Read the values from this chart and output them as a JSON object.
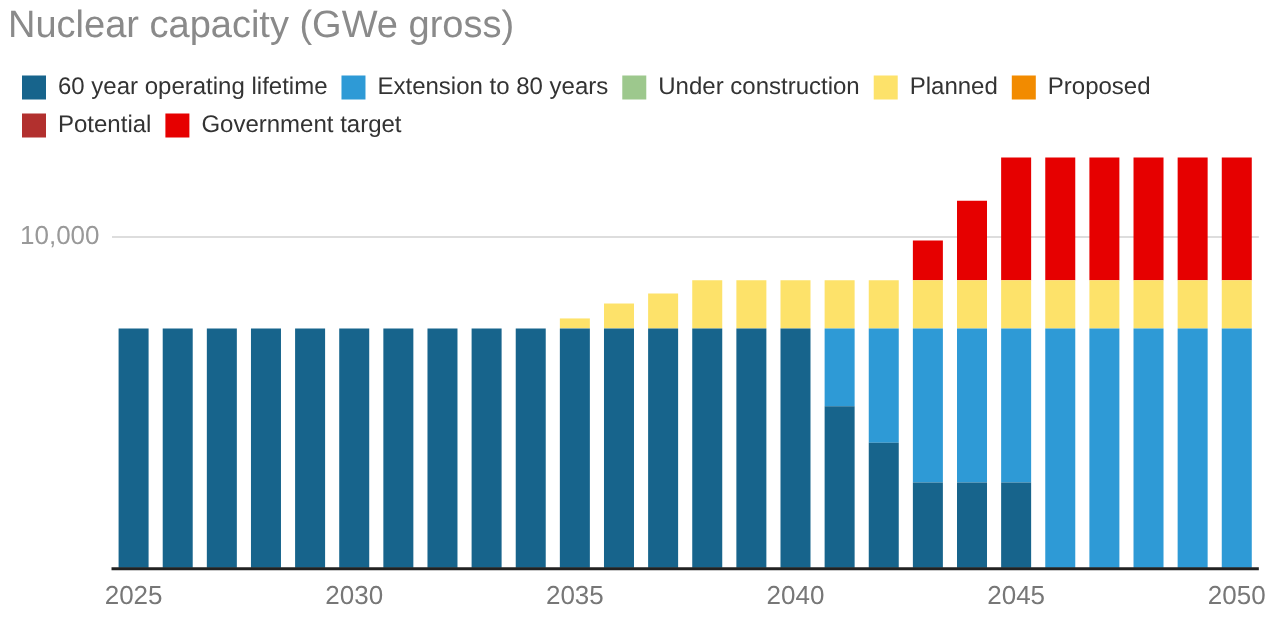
{
  "chart_data": {
    "type": "bar",
    "title": "Nuclear capacity (GWe gross)",
    "stacked": true,
    "legend": "top left",
    "grid": "y",
    "categories": [
      "2025",
      null,
      null,
      null,
      null,
      "2030",
      null,
      null,
      null,
      null,
      "2035",
      null,
      null,
      null,
      null,
      "2040",
      null,
      null,
      null,
      null,
      "2045",
      null,
      null,
      null,
      null,
      "2050"
    ],
    "ylim": [
      0,
      12400
    ],
    "yticks": [
      {
        "value": 0,
        "label": null
      },
      10000
    ],
    "series": [
      {
        "name": "60 year operating lifetime",
        "color": "#17648c",
        "values": [
          7250,
          7250,
          7250,
          7250,
          7250,
          7250,
          7250,
          7250,
          7250,
          7250,
          7250,
          7250,
          7250,
          7250,
          7250,
          7250,
          4900,
          3800,
          2600,
          2600,
          2600,
          null,
          null,
          null,
          null,
          null
        ]
      },
      {
        "name": "Extension to 80 years",
        "color": "#2e9ad6",
        "values": [
          null,
          null,
          null,
          null,
          null,
          null,
          null,
          null,
          null,
          null,
          null,
          null,
          null,
          null,
          null,
          null,
          2350,
          3450,
          4650,
          4650,
          4650,
          7250,
          7250,
          7250,
          7250,
          7250
        ]
      },
      {
        "name": "Under construction",
        "color": "#9dc88d",
        "values": [
          null,
          null,
          null,
          null,
          null,
          null,
          null,
          null,
          null,
          null,
          null,
          null,
          null,
          null,
          null,
          null,
          null,
          null,
          null,
          null,
          null,
          null,
          null,
          null,
          null,
          null
        ]
      },
      {
        "name": "Planned",
        "color": "#fde26a",
        "values": [
          null,
          null,
          null,
          null,
          null,
          null,
          null,
          null,
          null,
          null,
          300,
          750,
          1050,
          1450,
          1450,
          1450,
          1450,
          1450,
          1450,
          1450,
          1450,
          1450,
          1450,
          1450,
          1450,
          1450
        ]
      },
      {
        "name": "Proposed",
        "color": "#f28b00",
        "values": [
          null,
          null,
          null,
          null,
          null,
          null,
          null,
          null,
          null,
          null,
          null,
          null,
          null,
          null,
          null,
          null,
          null,
          null,
          null,
          null,
          null,
          null,
          null,
          null,
          null,
          null
        ]
      },
      {
        "name": "Potential",
        "color": "#b2302e",
        "values": [
          null,
          null,
          null,
          null,
          null,
          null,
          null,
          null,
          null,
          null,
          null,
          null,
          null,
          null,
          null,
          null,
          null,
          null,
          null,
          null,
          null,
          null,
          null,
          null,
          null,
          null
        ]
      },
      {
        "name": "Government target",
        "color": "#e60000",
        "values": [
          null,
          null,
          null,
          null,
          null,
          null,
          null,
          null,
          null,
          null,
          null,
          null,
          null,
          null,
          null,
          null,
          null,
          null,
          1200,
          2400,
          3700,
          3700,
          3700,
          3700,
          3700,
          3700
        ]
      }
    ]
  }
}
